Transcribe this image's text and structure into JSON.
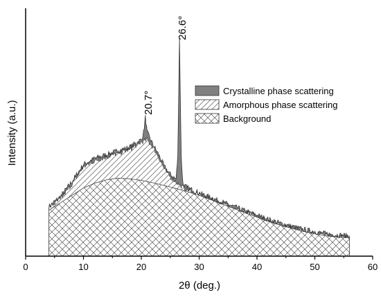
{
  "chart_data": {
    "type": "area",
    "xlabel": "2θ (deg.)",
    "ylabel": "Intensity (a.u.)",
    "xlim": [
      0,
      60
    ],
    "ylim": [
      0,
      100
    ],
    "x_ticks": [
      0,
      10,
      20,
      30,
      40,
      50,
      60
    ],
    "y_ticks_shown": false,
    "legend_position": "right-center",
    "legend": [
      {
        "label": "Crystalline phase scattering",
        "pattern": "solid-gray",
        "color": "#808080"
      },
      {
        "label": "Amorphous phase scattering",
        "pattern": "diagonal-hatch"
      },
      {
        "label": "Background",
        "pattern": "cross-hatch"
      }
    ],
    "annotations": [
      {
        "text": "20.7°",
        "x": 20.7
      },
      {
        "text": "26.6°",
        "x": 26.6
      }
    ],
    "series": [
      {
        "name": "Background",
        "x": [
          4,
          6,
          8,
          10,
          12,
          14,
          16,
          18,
          20,
          22,
          24,
          26,
          28,
          30,
          32,
          34,
          36,
          38,
          40,
          42,
          44,
          46,
          48,
          50,
          52,
          54,
          56
        ],
        "y": [
          18.5,
          21.5,
          24.5,
          27.5,
          29.5,
          30.8,
          31.5,
          31.2,
          30.6,
          29.6,
          28.5,
          27.3,
          26.0,
          24.5,
          22.8,
          21.0,
          19.2,
          17.4,
          15.7,
          14.0,
          12.5,
          11.2,
          10.0,
          9.0,
          8.2,
          7.7,
          7.4
        ]
      },
      {
        "name": "Amorphous phase scattering",
        "x": [
          4,
          6,
          8,
          10,
          12,
          14,
          16,
          18,
          20,
          21,
          22,
          23,
          24,
          25,
          26,
          27,
          28,
          30,
          32,
          34,
          36,
          38,
          40,
          42,
          44,
          46,
          48,
          50,
          52,
          54,
          56
        ],
        "y": [
          19.5,
          23,
          29,
          36,
          38.5,
          40,
          41.5,
          43,
          46,
          47,
          44,
          40,
          35,
          32,
          30,
          28,
          26.8,
          24.8,
          23,
          21.2,
          19.4,
          17.6,
          15.9,
          14.2,
          12.7,
          11.4,
          10.2,
          9.2,
          8.4,
          7.9,
          7.6
        ]
      },
      {
        "name": "Crystalline phase scattering",
        "x": [
          4,
          6,
          8,
          10,
          12,
          14,
          16,
          18,
          20,
          20.4,
          20.7,
          21.0,
          21.4,
          22,
          23,
          24,
          25,
          26,
          26.3,
          26.6,
          26.9,
          27.2,
          28,
          30,
          32,
          34,
          36,
          38,
          40,
          42,
          44,
          46,
          48,
          50,
          52,
          54,
          56
        ],
        "y": [
          20,
          24,
          30,
          37,
          39.5,
          41,
          42.5,
          44,
          47,
          50,
          56,
          50,
          48,
          45,
          41,
          36,
          33,
          31,
          40,
          88,
          40,
          29,
          27.5,
          25.5,
          23.6,
          21.8,
          20,
          18.2,
          16.5,
          14.8,
          13.3,
          12,
          10.8,
          9.8,
          9,
          8.5,
          8.2
        ]
      }
    ]
  }
}
